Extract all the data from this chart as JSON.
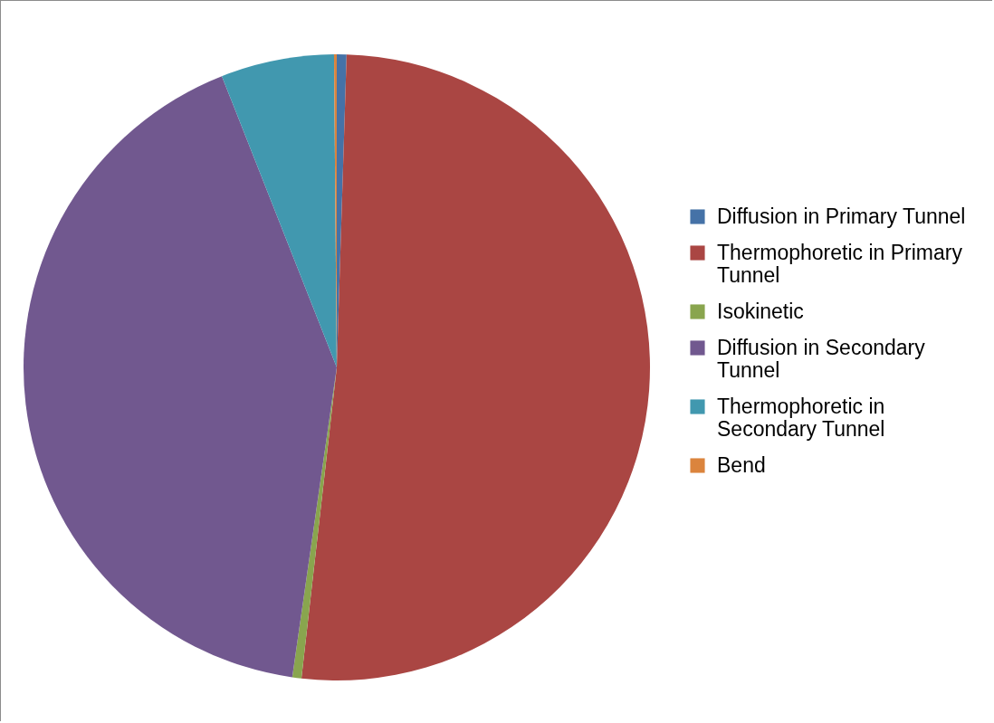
{
  "chart_data": {
    "type": "pie",
    "categories": [
      "Diffusion in Primary Tunnel",
      "Thermophoretic in Primary Tunnel",
      "Isokinetic",
      "Diffusion in Secondary Tunnel",
      "Thermophoretic in Secondary Tunnel",
      "Bend"
    ],
    "values": [
      0.5,
      51.3,
      0.47,
      41.75,
      5.84,
      0.14
    ],
    "colors": [
      "#4572a7",
      "#aa4643",
      "#89a54e",
      "#71588f",
      "#4198af",
      "#db843d"
    ],
    "legend": "right"
  }
}
